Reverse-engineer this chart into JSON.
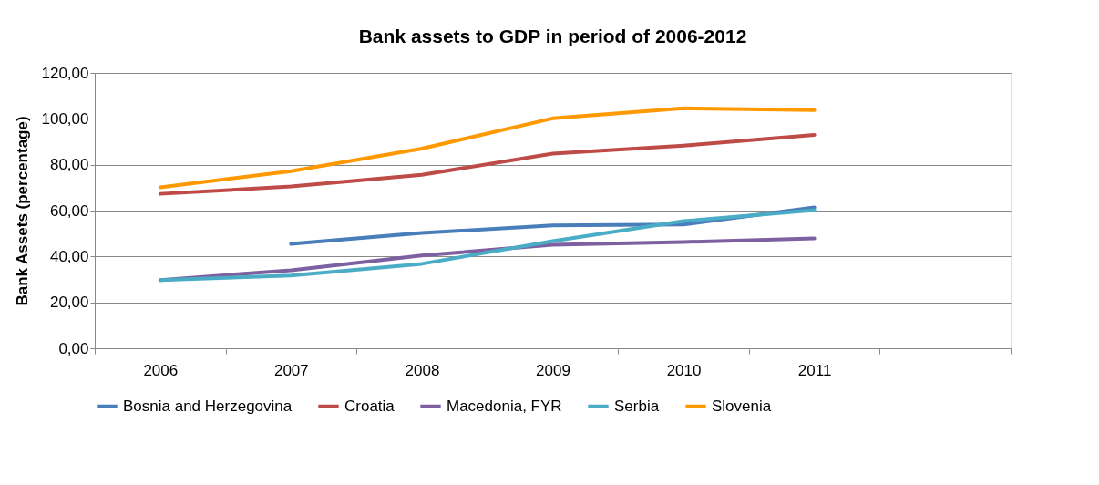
{
  "chart_data": {
    "type": "line",
    "title": "Bank assets to GDP in period of 2006-2012",
    "ylabel": "Bank Assets (percentage)",
    "categories": [
      "2006",
      "2007",
      "2008",
      "2009",
      "2010",
      "2011",
      null
    ],
    "series": [
      {
        "name": "Bosnia and Herzegovina",
        "color": "#4a7ebb",
        "values": [
          null,
          45.5,
          50.3,
          53.5,
          53.9,
          61.4,
          null
        ]
      },
      {
        "name": "Croatia",
        "color": "#be4b48",
        "values": [
          67.3,
          70.5,
          75.6,
          84.8,
          88.3,
          93.0,
          null
        ]
      },
      {
        "name": "Macedonia, FYR",
        "color": "#7d60a0",
        "values": [
          29.7,
          34.0,
          40.4,
          45.1,
          46.3,
          47.9,
          null
        ]
      },
      {
        "name": "Serbia",
        "color": "#4bacc6",
        "values": [
          29.7,
          31.7,
          36.8,
          46.7,
          55.4,
          60.2,
          null
        ]
      },
      {
        "name": "Slovenia",
        "color": "#ff9900",
        "values": [
          70.1,
          77.2,
          87.0,
          100.2,
          104.6,
          103.8,
          null
        ]
      }
    ],
    "ylim": [
      0,
      120
    ],
    "yticks": [
      {
        "value": 0,
        "label": "0,00"
      },
      {
        "value": 20,
        "label": "20,00"
      },
      {
        "value": 40,
        "label": "40,00"
      },
      {
        "value": 60,
        "label": "60,00"
      },
      {
        "value": 80,
        "label": "80,00"
      },
      {
        "value": 100,
        "label": "100,00"
      },
      {
        "value": 120,
        "label": "120,00"
      }
    ],
    "grid": "y",
    "legend": "bottom",
    "marker": "none",
    "line_style": "solid"
  }
}
